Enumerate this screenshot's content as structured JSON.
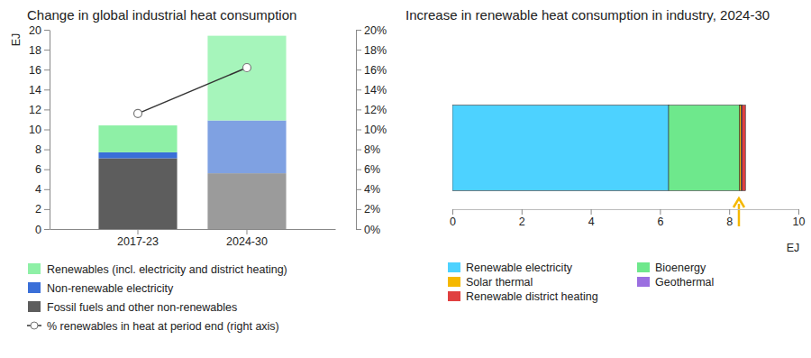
{
  "chart_data": [
    {
      "type": "bar",
      "title": "Change in global industrial heat consumption",
      "stacked": true,
      "legend": "bottom",
      "ylabel": "EJ",
      "categories": [
        "2017-23",
        "2024-30"
      ],
      "ylim": [
        0,
        20
      ],
      "yticks": [
        0,
        2,
        4,
        6,
        8,
        10,
        12,
        14,
        16,
        18,
        20
      ],
      "y2lim": [
        0,
        20
      ],
      "y2ticks": [
        {
          "value": 0,
          "label": "0%"
        },
        {
          "value": 2,
          "label": "2%"
        },
        {
          "value": 4,
          "label": "4%"
        },
        {
          "value": 6,
          "label": "6%"
        },
        {
          "value": 8,
          "label": "8%"
        },
        {
          "value": 10,
          "label": "10%"
        },
        {
          "value": 12,
          "label": "12%"
        },
        {
          "value": 14,
          "label": "14%"
        },
        {
          "value": 16,
          "label": "16%"
        },
        {
          "value": 18,
          "label": "18%"
        },
        {
          "value": 20,
          "label": "20%"
        }
      ],
      "series": [
        {
          "name": "Renewables (incl. electricity and district heating)",
          "colors": [
            "#8ef0a6",
            "#a6f5bb"
          ],
          "values": [
            2.7,
            8.5
          ]
        },
        {
          "name": "Non-renewable electricity",
          "colors": [
            "#3a6fd8",
            "#7fa1e2"
          ],
          "values": [
            0.6,
            5.3
          ]
        },
        {
          "name": "Fossil fuels and other non-renewables",
          "colors": [
            "#5d5d5d",
            "#9b9b9b"
          ],
          "values": [
            7.1,
            5.6
          ]
        },
        {
          "name": "% renewables in heat at period end (right axis)",
          "type": "line",
          "axis": "y2",
          "color": "#333333",
          "marker": "circle",
          "values": [
            11.6,
            16.2
          ]
        }
      ]
    },
    {
      "type": "bar",
      "title": "Increase in renewable heat consumption in industry, 2024-30",
      "orientation": "horizontal",
      "stacked": true,
      "legend": "bottom",
      "xlabel": "EJ",
      "categories": [
        null
      ],
      "xlim": [
        0,
        10
      ],
      "xticks": [
        0,
        2,
        4,
        6,
        8,
        10
      ],
      "series": [
        {
          "name": "Renewable electricity",
          "color": "#4dd2ff",
          "values": [
            6.25
          ]
        },
        {
          "name": "Bioenergy",
          "color": "#6ee88c",
          "values": [
            2.05
          ]
        },
        {
          "name": "Solar thermal",
          "color": "#f5b800",
          "values": [
            0.05
          ]
        },
        {
          "name": "Geothermal",
          "color": "#9b6fe0",
          "values": [
            0.02
          ]
        },
        {
          "name": "Renewable district heating",
          "color": "#e04040",
          "values": [
            0.1
          ]
        }
      ]
    }
  ]
}
